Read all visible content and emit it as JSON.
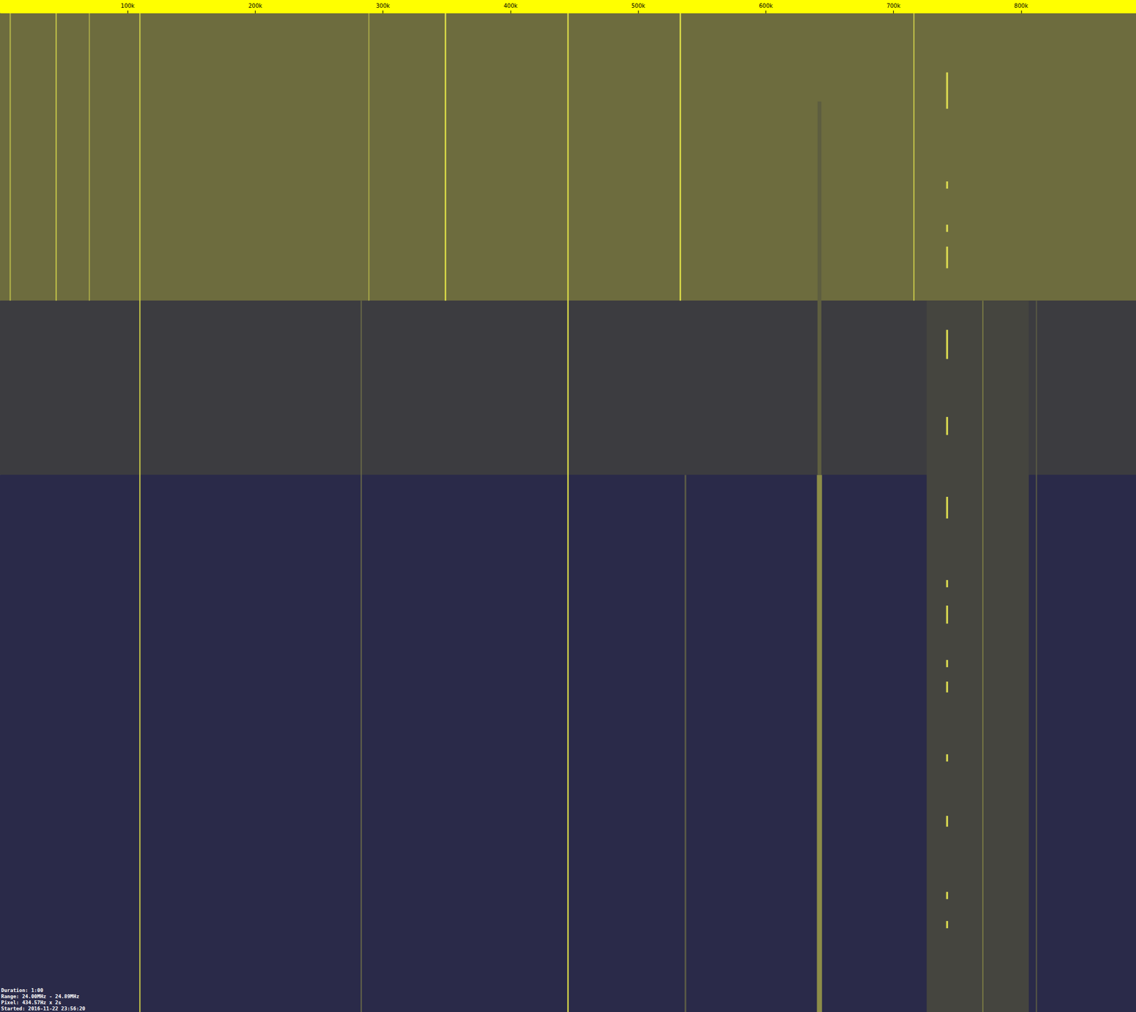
{
  "chart_data": {
    "type": "spectrogram",
    "annotations": [
      "Duration: 1:00",
      "Range: 24.00MHz - 24.89MHz",
      "Pixel: 434.57Hz x 2s",
      "Started: 2016-11-22 23:56:20"
    ],
    "xlim": [
      0,
      890000
    ],
    "xticks": [
      {
        "value": 100000,
        "label": "100k"
      },
      {
        "value": 200000,
        "label": "200k"
      },
      {
        "value": 300000,
        "label": "300k"
      },
      {
        "value": 400000,
        "label": "400k"
      },
      {
        "value": 500000,
        "label": "500k"
      },
      {
        "value": 600000,
        "label": "600k"
      },
      {
        "value": 700000,
        "label": "700k"
      },
      {
        "value": 800000,
        "label": "800k"
      }
    ],
    "ylim": [
      0,
      3600
    ],
    "tick_labels": "x",
    "bands": [
      {
        "start": 0,
        "end": 1036,
        "color": "#6d6c3e"
      },
      {
        "start": 1036,
        "end": 1664,
        "color": "#3c3c40"
      },
      {
        "start": 1664,
        "end": 3600,
        "color": "#2a2a49"
      }
    ],
    "signals": [
      {
        "freq": 766000,
        "bandwidth": 80000,
        "color": "#45453f",
        "segments": [
          [
            1036,
            3600
          ]
        ]
      },
      {
        "freq": 8000,
        "bandwidth": 900,
        "color": "#b8b84a",
        "segments": [
          [
            0,
            1036
          ]
        ]
      },
      {
        "freq": 44000,
        "bandwidth": 900,
        "color": "#c8c84a",
        "segments": [
          [
            0,
            1036
          ]
        ]
      },
      {
        "freq": 70000,
        "bandwidth": 900,
        "color": "#a8a848",
        "segments": [
          [
            0,
            1036
          ]
        ]
      },
      {
        "freq": 109600,
        "bandwidth": 900,
        "color": "#d0d048",
        "segments": [
          [
            0,
            3600
          ]
        ]
      },
      {
        "freq": 283000,
        "bandwidth": 700,
        "color": "#6a6a48",
        "segments": [
          [
            1036,
            3600
          ]
        ]
      },
      {
        "freq": 289000,
        "bandwidth": 900,
        "color": "#a8a848",
        "segments": [
          [
            0,
            1036
          ]
        ]
      },
      {
        "freq": 349000,
        "bandwidth": 1100,
        "color": "#e0e048",
        "segments": [
          [
            0,
            1036
          ]
        ]
      },
      {
        "freq": 445000,
        "bandwidth": 1100,
        "color": "#d8d848",
        "segments": [
          [
            0,
            3600
          ]
        ]
      },
      {
        "freq": 533000,
        "bandwidth": 1100,
        "color": "#e0e048",
        "segments": [
          [
            0,
            1036
          ]
        ]
      },
      {
        "freq": 537000,
        "bandwidth": 1300,
        "color": "#5a5a46",
        "segments": [
          [
            1664,
            3600
          ]
        ]
      },
      {
        "freq": 642000,
        "bandwidth": 3000,
        "color": "#5e5e40",
        "segments": [
          [
            318,
            1664
          ]
        ]
      },
      {
        "freq": 642000,
        "bandwidth": 4000,
        "color": "#8c8c48",
        "segments": [
          [
            1664,
            3600
          ]
        ]
      },
      {
        "freq": 716000,
        "bandwidth": 900,
        "color": "#c8c84a",
        "segments": [
          [
            0,
            1036
          ]
        ]
      },
      {
        "freq": 770000,
        "bandwidth": 900,
        "color": "#7a7a44",
        "segments": [
          [
            1036,
            3600
          ]
        ]
      },
      {
        "freq": 812000,
        "bandwidth": 900,
        "color": "#5a5a44",
        "segments": [
          [
            1036,
            3600
          ]
        ]
      },
      {
        "freq": 742000,
        "bandwidth": 1500,
        "color": "#d8d850",
        "segments": [
          [
            213,
            344
          ],
          [
            606,
            632
          ],
          [
            762,
            788
          ],
          [
            841,
            919
          ],
          [
            1141,
            1246
          ],
          [
            1455,
            1520
          ],
          [
            1743,
            1821
          ],
          [
            2043,
            2069
          ],
          [
            2135,
            2200
          ],
          [
            2331,
            2357
          ],
          [
            2409,
            2448
          ],
          [
            2671,
            2697
          ],
          [
            2893,
            2932
          ],
          [
            3167,
            3193
          ],
          [
            3272,
            3298
          ]
        ]
      }
    ]
  }
}
